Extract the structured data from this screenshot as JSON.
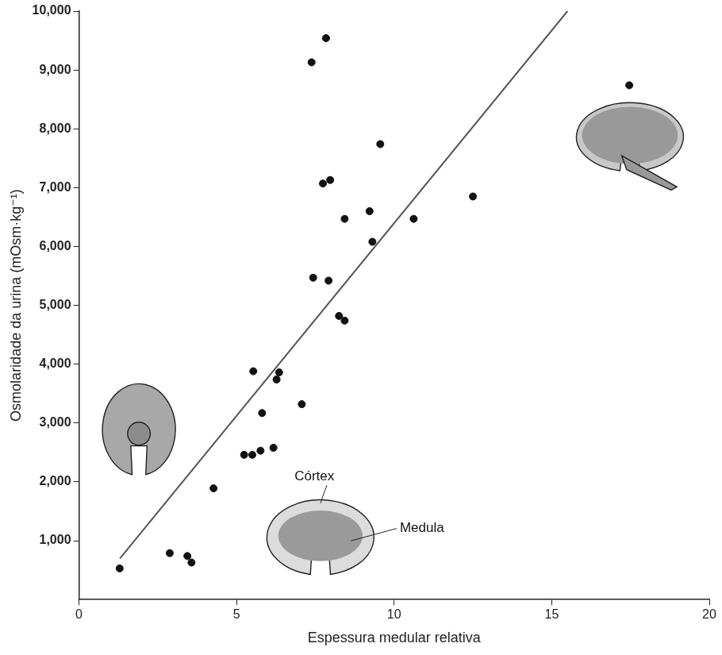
{
  "chart_data": {
    "type": "scatter",
    "x_label": "Espessura medular relativa",
    "y_label": "Osmolaridade da urina (mOsm·kg⁻¹)",
    "x": [
      1.29,
      2.88,
      3.44,
      3.57,
      4.27,
      5.24,
      5.5,
      5.76,
      6.17,
      5.81,
      7.07,
      5.53,
      6.35,
      6.27,
      8.25,
      8.43,
      7.43,
      7.92,
      8.43,
      9.31,
      9.22,
      10.62,
      12.5,
      7.74,
      7.97,
      9.56,
      7.38,
      7.84,
      17.46
    ],
    "values": [
      530,
      790,
      740,
      630,
      1890,
      2460,
      2460,
      2530,
      2580,
      3170,
      3320,
      3880,
      3860,
      3740,
      4820,
      4740,
      5470,
      5420,
      6470,
      6080,
      6600,
      6470,
      6850,
      7070,
      7130,
      7740,
      9130,
      9540,
      8740
    ],
    "color": "#111111",
    "marker": "circle",
    "xlim": [
      0,
      20
    ],
    "xticks": [
      0,
      5,
      10,
      15,
      20
    ],
    "ylim": [
      0,
      10000
    ],
    "yticks": [
      {
        "value": 1000,
        "label": "1,000"
      },
      {
        "value": 2000,
        "label": "2,000"
      },
      {
        "value": 3000,
        "label": "3,000"
      },
      {
        "value": 4000,
        "label": "4,000"
      },
      {
        "value": 5000,
        "label": "5,000"
      },
      {
        "value": 6000,
        "label": "6,000"
      },
      {
        "value": 7000,
        "label": "7,000"
      },
      {
        "value": 8000,
        "label": "8,000"
      },
      {
        "value": 9000,
        "label": "9,000"
      },
      {
        "value": 10000,
        "label": "10,000"
      }
    ],
    "grid": false,
    "fit_line": {
      "x": [
        1.3,
        15.5
      ],
      "y": [
        700,
        10000
      ],
      "color": "#555555"
    },
    "annotations": [
      "Córtex",
      "Medula"
    ]
  }
}
